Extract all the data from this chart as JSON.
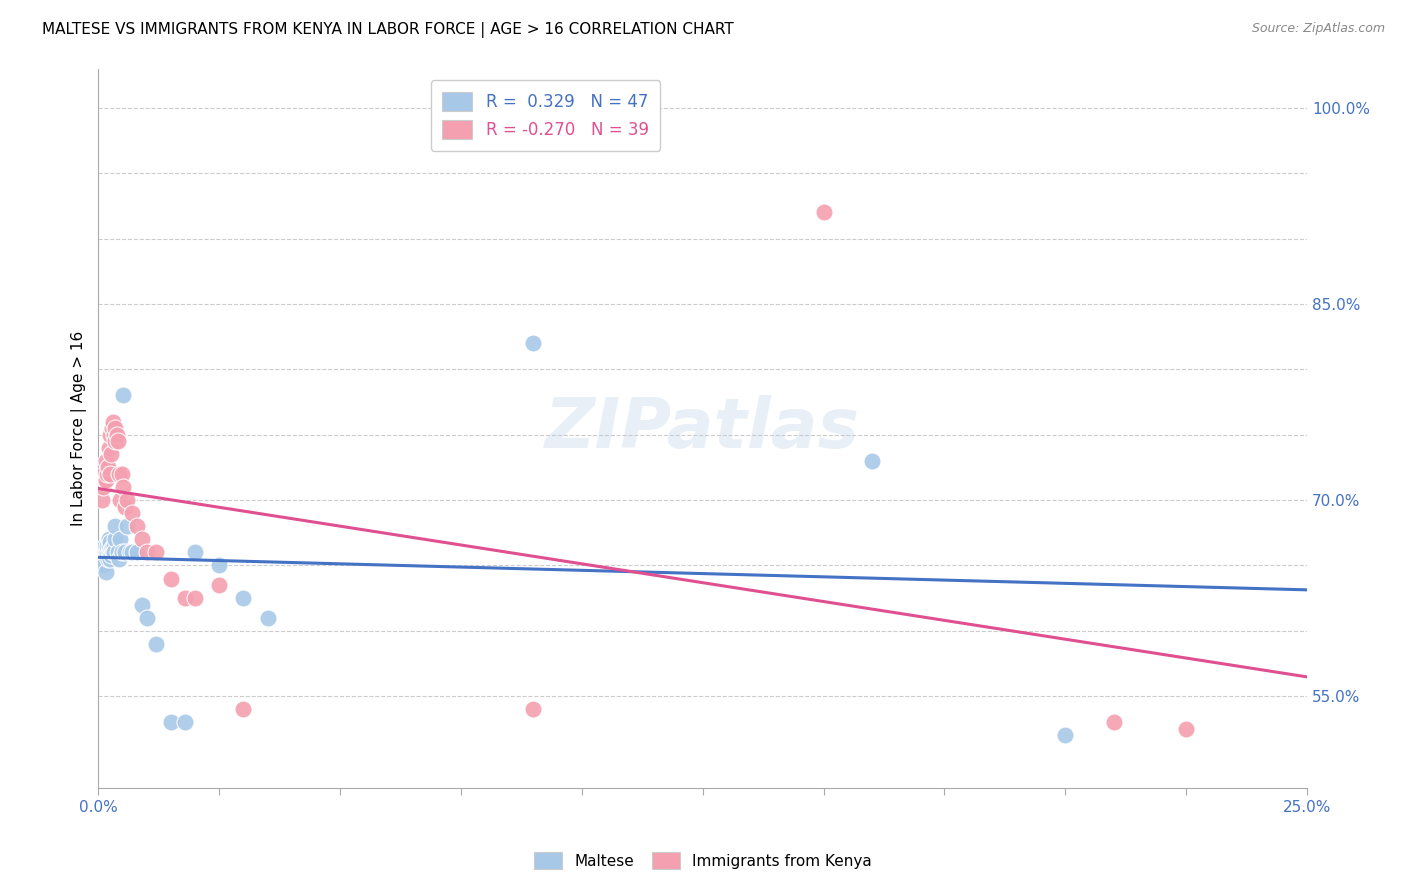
{
  "title": "MALTESE VS IMMIGRANTS FROM KENYA IN LABOR FORCE | AGE > 16 CORRELATION CHART",
  "source": "Source: ZipAtlas.com",
  "ylabel": "In Labor Force | Age > 16",
  "xlim": [
    0.0,
    0.25
  ],
  "ylim": [
    0.48,
    1.03
  ],
  "xticks": [
    0.0,
    0.025,
    0.05,
    0.075,
    0.1,
    0.125,
    0.15,
    0.175,
    0.2,
    0.225,
    0.25
  ],
  "xticklabels": [
    "0.0%",
    "",
    "",
    "",
    "",
    "",
    "",
    "",
    "",
    "",
    "25.0%"
  ],
  "yticks": [
    0.55,
    0.6,
    0.65,
    0.7,
    0.75,
    0.8,
    0.85,
    0.9,
    0.95,
    1.0
  ],
  "yticklabels": [
    "55.0%",
    "",
    "",
    "70.0%",
    "",
    "",
    "85.0%",
    "",
    "",
    "100.0%"
  ],
  "blue_color": "#a8c8e8",
  "pink_color": "#f4a0b0",
  "blue_line_color": "#4472c4",
  "pink_line_color": "#e05090",
  "watermark": "ZIPatlas",
  "maltese_x": [
    0.0008,
    0.001,
    0.0012,
    0.0013,
    0.0015,
    0.0015,
    0.0017,
    0.0018,
    0.0018,
    0.002,
    0.0021,
    0.0022,
    0.0023,
    0.0024,
    0.0025,
    0.0025,
    0.0026,
    0.0027,
    0.0028,
    0.003,
    0.003,
    0.0032,
    0.0033,
    0.0034,
    0.0035,
    0.004,
    0.0042,
    0.0045,
    0.0048,
    0.005,
    0.0055,
    0.006,
    0.0065,
    0.007,
    0.008,
    0.009,
    0.01,
    0.012,
    0.015,
    0.018,
    0.02,
    0.025,
    0.03,
    0.035,
    0.09,
    0.16,
    0.2
  ],
  "maltese_y": [
    0.66,
    0.655,
    0.65,
    0.665,
    0.645,
    0.66,
    0.658,
    0.66,
    0.665,
    0.655,
    0.66,
    0.67,
    0.665,
    0.668,
    0.66,
    0.655,
    0.662,
    0.658,
    0.663,
    0.66,
    0.66,
    0.665,
    0.66,
    0.67,
    0.68,
    0.66,
    0.655,
    0.67,
    0.66,
    0.78,
    0.66,
    0.68,
    0.66,
    0.66,
    0.66,
    0.62,
    0.61,
    0.59,
    0.53,
    0.53,
    0.66,
    0.65,
    0.625,
    0.61,
    0.82,
    0.73,
    0.52
  ],
  "kenya_x": [
    0.0008,
    0.001,
    0.0012,
    0.0014,
    0.0015,
    0.0016,
    0.0018,
    0.002,
    0.0022,
    0.0024,
    0.0025,
    0.0026,
    0.0028,
    0.003,
    0.0032,
    0.0034,
    0.0035,
    0.0038,
    0.004,
    0.0042,
    0.0045,
    0.0048,
    0.005,
    0.0055,
    0.006,
    0.007,
    0.008,
    0.009,
    0.01,
    0.012,
    0.015,
    0.018,
    0.02,
    0.025,
    0.03,
    0.09,
    0.15,
    0.21,
    0.225
  ],
  "kenya_y": [
    0.7,
    0.71,
    0.72,
    0.715,
    0.73,
    0.715,
    0.72,
    0.725,
    0.74,
    0.72,
    0.75,
    0.735,
    0.755,
    0.76,
    0.75,
    0.755,
    0.745,
    0.75,
    0.745,
    0.72,
    0.7,
    0.72,
    0.71,
    0.695,
    0.7,
    0.69,
    0.68,
    0.67,
    0.66,
    0.66,
    0.64,
    0.625,
    0.625,
    0.635,
    0.54,
    0.54,
    0.92,
    0.53,
    0.525
  ]
}
